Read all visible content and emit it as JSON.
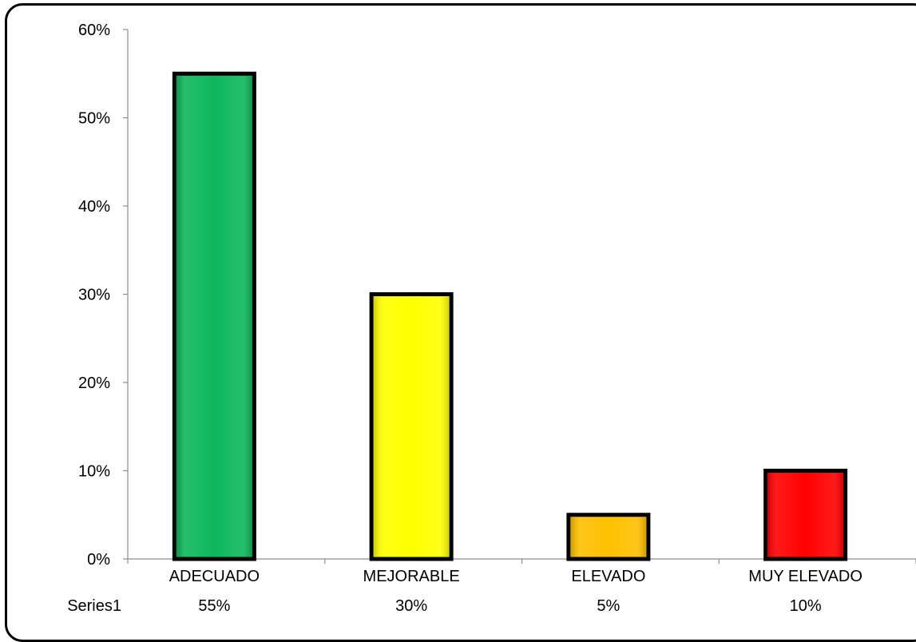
{
  "chart_data": {
    "type": "bar",
    "title": "",
    "xlabel": "",
    "ylabel": "",
    "categories": [
      "ADECUADO",
      "MEJORABLE",
      "ELEVADO",
      "MUY ELEVADO"
    ],
    "series": [
      {
        "name": "Series1",
        "values": [
          55,
          30,
          5,
          10
        ]
      }
    ],
    "value_labels": [
      "55%",
      "30%",
      "5%",
      "10%"
    ],
    "bar_colors": [
      "#0cb85a",
      "#ffff00",
      "#ffc000",
      "#ff0000"
    ],
    "ylim": [
      0,
      60
    ],
    "yticks": [
      0,
      10,
      20,
      30,
      40,
      50,
      60
    ],
    "ytick_labels": [
      "0%",
      "10%",
      "20%",
      "30%",
      "40%",
      "50%",
      "60%"
    ],
    "grid": false,
    "legend": "data-table-below"
  }
}
